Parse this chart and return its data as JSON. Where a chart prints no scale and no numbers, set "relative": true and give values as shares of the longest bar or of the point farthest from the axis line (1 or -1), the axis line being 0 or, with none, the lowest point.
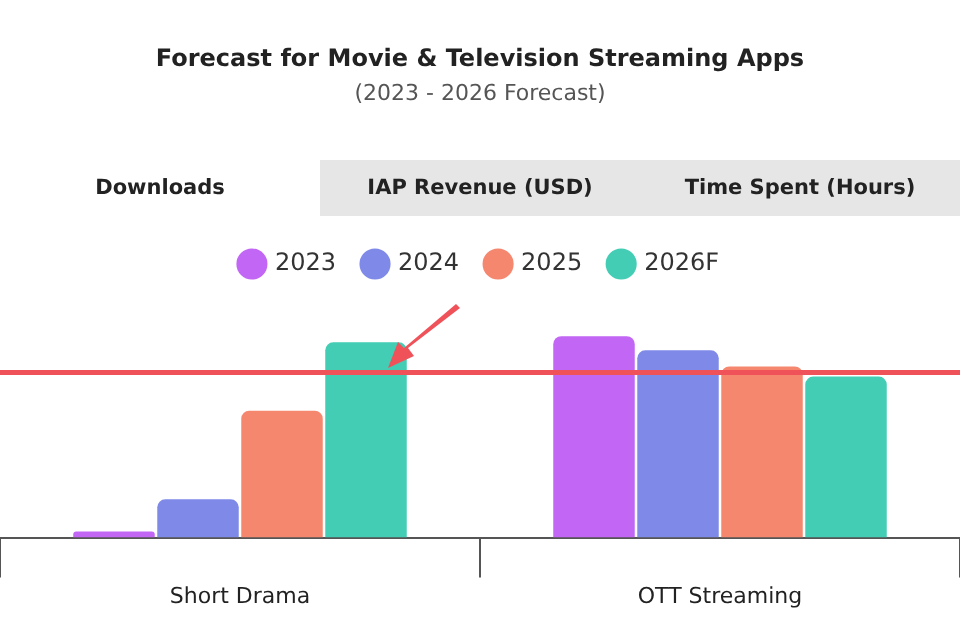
{
  "chart_data": {
    "type": "bar",
    "title": "Forecast for Movie & Television Streaming Apps",
    "subtitle": "(2023 - 2026 Forecast)",
    "annotations": [
      "Downloads",
      "IAP Revenue (USD)",
      "Time Spent (Hours)"
    ],
    "categories": [
      "Short Drama",
      "OTT Streaming"
    ],
    "relative": true,
    "series": [
      {
        "name": "2023",
        "color": "#c266f5",
        "values": [
          0.03,
          1
        ]
      },
      {
        "name": "2024",
        "color": "#7f8ae8",
        "values": [
          0.19,
          0.93
        ]
      },
      {
        "name": "2025",
        "color": "#f5876f",
        "values": [
          0.63,
          0.85
        ]
      },
      {
        "name": "2026F",
        "color": "#42cdb4",
        "values": [
          0.97,
          0.8
        ]
      }
    ],
    "ref_lines": [
      {
        "axis": "y",
        "value": 0.82,
        "color": "#f0525a"
      }
    ],
    "legend": "top"
  }
}
